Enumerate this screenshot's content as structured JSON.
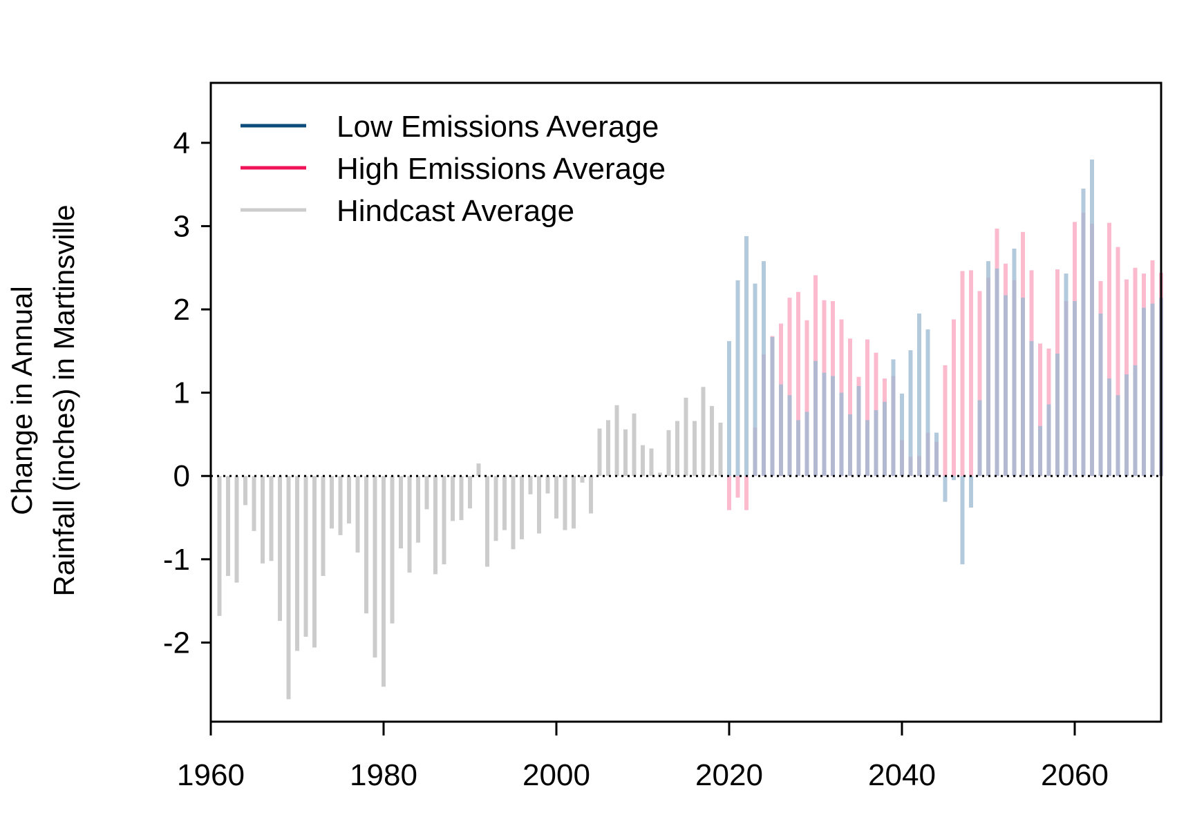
{
  "chart_data": {
    "type": "bar",
    "title": "",
    "xlabel": "",
    "ylabel": [
      "Change in Annual",
      "Rainfall (inches) in Martinsville"
    ],
    "xlim": [
      1960,
      2070
    ],
    "ylim": [
      -2.95,
      4.72
    ],
    "x_ticks": [
      1960,
      1980,
      2000,
      2020,
      2040,
      2060
    ],
    "x_tick_labels": [
      "1960",
      "1980",
      "2000",
      "2020",
      "2040",
      "2060"
    ],
    "y_ticks": [
      -2,
      -1,
      0,
      1,
      2,
      3,
      4
    ],
    "y_tick_labels": [
      "-2",
      "-1",
      "0",
      "1",
      "2",
      "3",
      "4"
    ],
    "zero_line": "dotted",
    "grid": false,
    "legend_position": "top-left",
    "series": [
      {
        "name": "Hindcast Average",
        "color": "#cccccc",
        "x": [
          1961,
          1962,
          1963,
          1964,
          1965,
          1966,
          1967,
          1968,
          1969,
          1970,
          1971,
          1972,
          1973,
          1974,
          1975,
          1976,
          1977,
          1978,
          1979,
          1980,
          1981,
          1982,
          1983,
          1984,
          1985,
          1986,
          1987,
          1988,
          1989,
          1990,
          1991,
          1992,
          1993,
          1994,
          1995,
          1996,
          1997,
          1998,
          1999,
          2000,
          2001,
          2002,
          2003,
          2004,
          2005,
          2006,
          2007,
          2008,
          2009,
          2010,
          2011,
          2012,
          2013,
          2014,
          2015,
          2016,
          2017,
          2018,
          2019
        ],
        "values": [
          -1.68,
          -1.2,
          -1.28,
          -0.35,
          -0.66,
          -1.05,
          -1.02,
          -1.74,
          -2.68,
          -2.1,
          -1.93,
          -2.06,
          -1.2,
          -0.63,
          -0.71,
          -0.57,
          -0.92,
          -1.65,
          -2.18,
          -2.53,
          -1.77,
          -0.87,
          -1.16,
          -0.8,
          -0.4,
          -1.18,
          -1.06,
          -0.54,
          -0.53,
          -0.39,
          0.15,
          -1.09,
          -0.78,
          -0.65,
          -0.88,
          -0.76,
          -0.22,
          -0.69,
          -0.21,
          -0.51,
          -0.65,
          -0.63,
          -0.08,
          -0.45,
          0.57,
          0.67,
          0.85,
          0.56,
          0.75,
          0.37,
          0.33,
          0.04,
          0.55,
          0.66,
          0.94,
          0.66,
          1.07,
          0.84,
          0.64
        ]
      },
      {
        "name": "Low Emissions Average",
        "color": "#0d4d7d",
        "x": [
          2020,
          2021,
          2022,
          2023,
          2024,
          2025,
          2026,
          2027,
          2028,
          2029,
          2030,
          2031,
          2032,
          2033,
          2034,
          2035,
          2036,
          2037,
          2038,
          2039,
          2040,
          2041,
          2042,
          2043,
          2044,
          2045,
          2046,
          2047,
          2048,
          2049,
          2050,
          2051,
          2052,
          2053,
          2054,
          2055,
          2056,
          2057,
          2058,
          2059,
          2060,
          2061,
          2062,
          2063,
          2064,
          2065,
          2066,
          2067,
          2068,
          2069,
          2070
        ],
        "values": [
          1.62,
          2.35,
          2.88,
          2.31,
          2.58,
          1.67,
          1.1,
          0.97,
          0.67,
          0.77,
          1.38,
          1.24,
          1.2,
          1.0,
          0.74,
          1.08,
          0.67,
          0.79,
          0.89,
          1.4,
          0.99,
          1.51,
          1.95,
          1.76,
          0.52,
          -0.31,
          -0.05,
          -1.06,
          -0.38,
          0.91,
          2.58,
          2.49,
          2.17,
          2.73,
          2.14,
          1.62,
          0.6,
          0.86,
          1.47,
          2.43,
          2.1,
          3.45,
          3.8,
          1.95,
          1.17,
          0.97,
          1.22,
          1.33,
          2.02,
          2.07,
          2.14
        ]
      },
      {
        "name": "High Emissions Average",
        "color": "#f0135a",
        "x": [
          2020,
          2021,
          2022,
          2023,
          2024,
          2025,
          2026,
          2027,
          2028,
          2029,
          2030,
          2031,
          2032,
          2033,
          2034,
          2035,
          2036,
          2037,
          2038,
          2039,
          2040,
          2041,
          2042,
          2043,
          2044,
          2045,
          2046,
          2047,
          2048,
          2049,
          2050,
          2051,
          2052,
          2053,
          2054,
          2055,
          2056,
          2057,
          2058,
          2059,
          2060,
          2061,
          2062,
          2063,
          2064,
          2065,
          2066,
          2067,
          2068,
          2069,
          2070
        ],
        "values": [
          -0.41,
          -0.26,
          -0.41,
          0.58,
          1.46,
          1.68,
          1.83,
          2.14,
          2.21,
          1.87,
          2.41,
          2.11,
          2.1,
          1.88,
          1.65,
          1.19,
          1.64,
          1.48,
          1.17,
          1.2,
          0.43,
          0.23,
          0.24,
          0.52,
          0.41,
          1.33,
          1.88,
          2.46,
          2.47,
          2.22,
          2.38,
          2.97,
          2.55,
          2.35,
          2.93,
          2.47,
          1.59,
          1.53,
          2.48,
          2.1,
          3.05,
          3.16,
          3.03,
          2.34,
          3.04,
          2.75,
          2.36,
          2.5,
          2.43,
          2.59,
          2.44
        ]
      }
    ]
  },
  "legend": {
    "items": [
      {
        "label": "Low Emissions Average",
        "color": "#0d4d7d"
      },
      {
        "label": "High Emissions Average",
        "color": "#f0135a"
      },
      {
        "label": "Hindcast Average",
        "color": "#cccccc"
      }
    ]
  },
  "bar_colors": {
    "hindcast": "#cccccc",
    "low_translucent": "#9ab8d0",
    "high_translucent": "#f9a3bd"
  }
}
